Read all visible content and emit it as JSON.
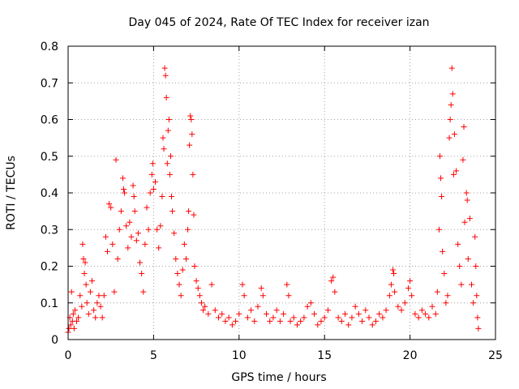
{
  "chart_data": {
    "type": "scatter",
    "title": "Day 045 of 2024, Rate Of TEC Index for receiver izan",
    "xlabel": "GPS time / hours",
    "ylabel": "ROTI / TECUs",
    "xlim": [
      0,
      25
    ],
    "ylim": [
      0,
      0.8
    ],
    "x_ticks": [
      "0",
      "5",
      "10",
      "15",
      "20",
      "25"
    ],
    "y_ticks": [
      "0",
      "0.1",
      "0.2",
      "0.3",
      "0.4",
      "0.5",
      "0.6",
      "0.7",
      "0.8"
    ],
    "grid": true,
    "marker": "+",
    "series_color": "#ff0000",
    "points": [
      [
        0.0,
        0.02
      ],
      [
        0.05,
        0.03
      ],
      [
        0.1,
        0.06
      ],
      [
        0.15,
        0.04
      ],
      [
        0.2,
        0.13
      ],
      [
        0.25,
        0.05
      ],
      [
        0.3,
        0.07
      ],
      [
        0.35,
        0.03
      ],
      [
        0.4,
        0.08
      ],
      [
        0.5,
        0.05
      ],
      [
        0.6,
        0.06
      ],
      [
        0.7,
        0.12
      ],
      [
        0.8,
        0.09
      ],
      [
        0.85,
        0.26
      ],
      [
        0.9,
        0.22
      ],
      [
        0.95,
        0.18
      ],
      [
        1.0,
        0.21
      ],
      [
        1.05,
        0.15
      ],
      [
        1.1,
        0.1
      ],
      [
        1.2,
        0.07
      ],
      [
        1.3,
        0.13
      ],
      [
        1.4,
        0.16
      ],
      [
        1.5,
        0.08
      ],
      [
        1.6,
        0.06
      ],
      [
        1.7,
        0.1
      ],
      [
        1.8,
        0.12
      ],
      [
        1.9,
        0.09
      ],
      [
        2.0,
        0.06
      ],
      [
        2.1,
        0.12
      ],
      [
        2.2,
        0.28
      ],
      [
        2.3,
        0.24
      ],
      [
        2.4,
        0.37
      ],
      [
        2.5,
        0.36
      ],
      [
        2.6,
        0.26
      ],
      [
        2.7,
        0.13
      ],
      [
        2.8,
        0.49
      ],
      [
        2.9,
        0.22
      ],
      [
        3.0,
        0.3
      ],
      [
        3.1,
        0.35
      ],
      [
        3.2,
        0.44
      ],
      [
        3.25,
        0.41
      ],
      [
        3.3,
        0.4
      ],
      [
        3.4,
        0.31
      ],
      [
        3.5,
        0.25
      ],
      [
        3.6,
        0.32
      ],
      [
        3.7,
        0.28
      ],
      [
        3.8,
        0.42
      ],
      [
        3.85,
        0.39
      ],
      [
        3.9,
        0.35
      ],
      [
        4.0,
        0.27
      ],
      [
        4.1,
        0.29
      ],
      [
        4.2,
        0.21
      ],
      [
        4.3,
        0.18
      ],
      [
        4.4,
        0.13
      ],
      [
        4.5,
        0.26
      ],
      [
        4.6,
        0.36
      ],
      [
        4.7,
        0.3
      ],
      [
        4.8,
        0.4
      ],
      [
        4.9,
        0.45
      ],
      [
        4.95,
        0.48
      ],
      [
        5.0,
        0.41
      ],
      [
        5.1,
        0.43
      ],
      [
        5.2,
        0.3
      ],
      [
        5.3,
        0.25
      ],
      [
        5.4,
        0.31
      ],
      [
        5.5,
        0.39
      ],
      [
        5.55,
        0.55
      ],
      [
        5.6,
        0.52
      ],
      [
        5.65,
        0.74
      ],
      [
        5.7,
        0.72
      ],
      [
        5.75,
        0.66
      ],
      [
        5.8,
        0.48
      ],
      [
        5.85,
        0.57
      ],
      [
        5.9,
        0.6
      ],
      [
        5.95,
        0.45
      ],
      [
        6.0,
        0.5
      ],
      [
        6.05,
        0.39
      ],
      [
        6.1,
        0.35
      ],
      [
        6.2,
        0.29
      ],
      [
        6.3,
        0.22
      ],
      [
        6.4,
        0.18
      ],
      [
        6.5,
        0.15
      ],
      [
        6.6,
        0.12
      ],
      [
        6.7,
        0.19
      ],
      [
        6.8,
        0.26
      ],
      [
        6.9,
        0.22
      ],
      [
        7.0,
        0.3
      ],
      [
        7.05,
        0.35
      ],
      [
        7.1,
        0.53
      ],
      [
        7.15,
        0.61
      ],
      [
        7.2,
        0.6
      ],
      [
        7.25,
        0.56
      ],
      [
        7.3,
        0.45
      ],
      [
        7.35,
        0.34
      ],
      [
        7.4,
        0.2
      ],
      [
        7.5,
        0.16
      ],
      [
        7.6,
        0.14
      ],
      [
        7.7,
        0.12
      ],
      [
        7.8,
        0.1
      ],
      [
        7.9,
        0.08
      ],
      [
        8.0,
        0.09
      ],
      [
        8.2,
        0.07
      ],
      [
        8.4,
        0.15
      ],
      [
        8.6,
        0.08
      ],
      [
        8.8,
        0.06
      ],
      [
        9.0,
        0.07
      ],
      [
        9.2,
        0.05
      ],
      [
        9.4,
        0.06
      ],
      [
        9.6,
        0.04
      ],
      [
        9.8,
        0.05
      ],
      [
        10.0,
        0.07
      ],
      [
        10.2,
        0.15
      ],
      [
        10.3,
        0.12
      ],
      [
        10.5,
        0.06
      ],
      [
        10.7,
        0.08
      ],
      [
        10.9,
        0.05
      ],
      [
        11.1,
        0.09
      ],
      [
        11.3,
        0.14
      ],
      [
        11.4,
        0.12
      ],
      [
        11.6,
        0.07
      ],
      [
        11.8,
        0.05
      ],
      [
        12.0,
        0.06
      ],
      [
        12.2,
        0.08
      ],
      [
        12.4,
        0.05
      ],
      [
        12.6,
        0.07
      ],
      [
        12.8,
        0.15
      ],
      [
        12.9,
        0.12
      ],
      [
        13.0,
        0.05
      ],
      [
        13.2,
        0.06
      ],
      [
        13.4,
        0.04
      ],
      [
        13.6,
        0.05
      ],
      [
        13.8,
        0.06
      ],
      [
        14.0,
        0.09
      ],
      [
        14.2,
        0.1
      ],
      [
        14.4,
        0.07
      ],
      [
        14.6,
        0.04
      ],
      [
        14.8,
        0.05
      ],
      [
        15.0,
        0.06
      ],
      [
        15.2,
        0.08
      ],
      [
        15.4,
        0.16
      ],
      [
        15.5,
        0.17
      ],
      [
        15.6,
        0.13
      ],
      [
        15.8,
        0.06
      ],
      [
        16.0,
        0.05
      ],
      [
        16.2,
        0.07
      ],
      [
        16.4,
        0.04
      ],
      [
        16.6,
        0.06
      ],
      [
        16.8,
        0.09
      ],
      [
        17.0,
        0.07
      ],
      [
        17.2,
        0.05
      ],
      [
        17.4,
        0.08
      ],
      [
        17.6,
        0.06
      ],
      [
        17.8,
        0.04
      ],
      [
        18.0,
        0.05
      ],
      [
        18.2,
        0.07
      ],
      [
        18.4,
        0.06
      ],
      [
        18.6,
        0.08
      ],
      [
        18.8,
        0.12
      ],
      [
        18.9,
        0.15
      ],
      [
        19.0,
        0.19
      ],
      [
        19.05,
        0.18
      ],
      [
        19.1,
        0.13
      ],
      [
        19.3,
        0.09
      ],
      [
        19.5,
        0.08
      ],
      [
        19.7,
        0.1
      ],
      [
        19.9,
        0.14
      ],
      [
        20.0,
        0.16
      ],
      [
        20.1,
        0.12
      ],
      [
        20.3,
        0.07
      ],
      [
        20.5,
        0.06
      ],
      [
        20.7,
        0.08
      ],
      [
        20.9,
        0.07
      ],
      [
        21.1,
        0.06
      ],
      [
        21.3,
        0.09
      ],
      [
        21.5,
        0.07
      ],
      [
        21.6,
        0.13
      ],
      [
        21.7,
        0.3
      ],
      [
        21.75,
        0.5
      ],
      [
        21.8,
        0.44
      ],
      [
        21.85,
        0.39
      ],
      [
        21.9,
        0.24
      ],
      [
        22.0,
        0.18
      ],
      [
        22.1,
        0.1
      ],
      [
        22.2,
        0.12
      ],
      [
        22.3,
        0.55
      ],
      [
        22.35,
        0.6
      ],
      [
        22.4,
        0.64
      ],
      [
        22.45,
        0.74
      ],
      [
        22.5,
        0.67
      ],
      [
        22.55,
        0.45
      ],
      [
        22.6,
        0.56
      ],
      [
        22.7,
        0.46
      ],
      [
        22.8,
        0.26
      ],
      [
        22.9,
        0.2
      ],
      [
        23.0,
        0.15
      ],
      [
        23.1,
        0.49
      ],
      [
        23.15,
        0.58
      ],
      [
        23.2,
        0.32
      ],
      [
        23.3,
        0.4
      ],
      [
        23.35,
        0.38
      ],
      [
        23.4,
        0.22
      ],
      [
        23.5,
        0.33
      ],
      [
        23.6,
        0.15
      ],
      [
        23.7,
        0.1
      ],
      [
        23.8,
        0.28
      ],
      [
        23.85,
        0.2
      ],
      [
        23.9,
        0.12
      ],
      [
        23.95,
        0.06
      ],
      [
        24.0,
        0.03
      ]
    ]
  }
}
